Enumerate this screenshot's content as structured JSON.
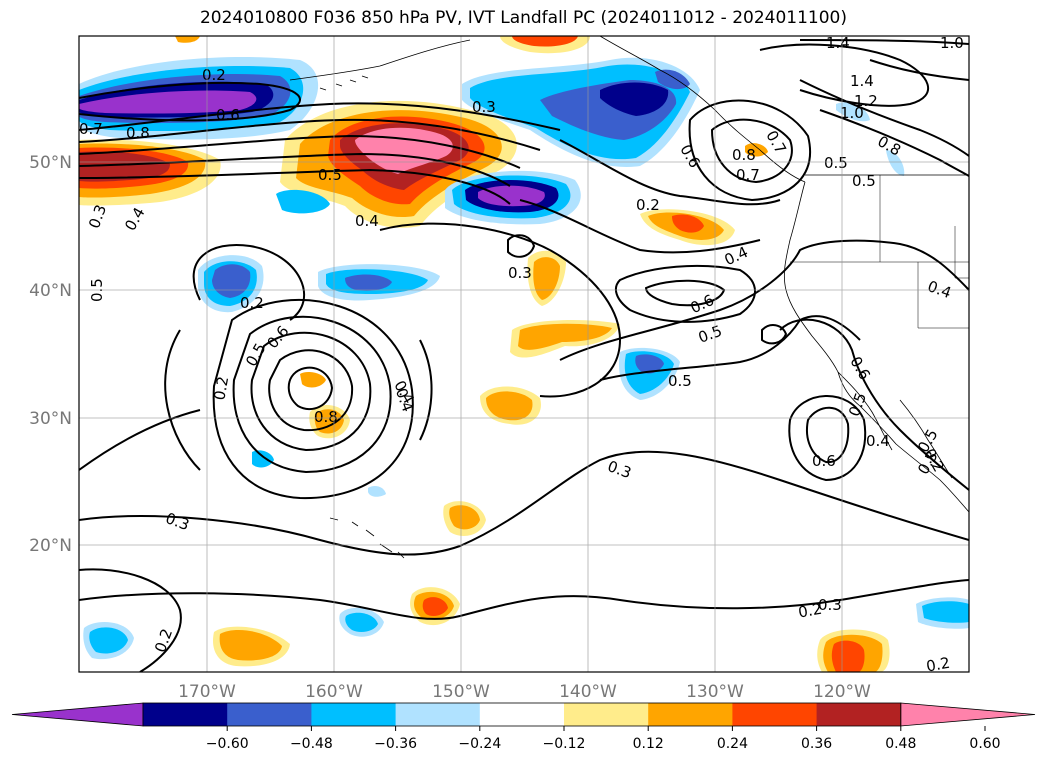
{
  "title": "2024010800 F036 850 hPa PV, IVT Landfall PC (2024011012 - 2024011100)",
  "map": {
    "lat_labels": [
      "50°N",
      "40°N",
      "30°N",
      "20°N"
    ],
    "lon_labels": [
      "170°W",
      "160°W",
      "150°W",
      "140°W",
      "130°W",
      "120°W"
    ],
    "gridlines": true,
    "coastlines": true
  },
  "colorbar": {
    "ticks": [
      "−0.60",
      "−0.48",
      "−0.36",
      "−0.24",
      "−0.12",
      "0.12",
      "0.24",
      "0.36",
      "0.48",
      "0.60"
    ],
    "colors": [
      "#9932cc",
      "#00008b",
      "#3a5fcd",
      "#00bfff",
      "#b0e2ff",
      "#ffffff",
      "#ffec8b",
      "#ffa500",
      "#ff4500",
      "#b22222",
      "#ff82ab"
    ],
    "extend": "both"
  },
  "contour_labels": [
    "0.2",
    "0.6",
    "0.7",
    "0.8",
    "0.3",
    "0.5",
    "0.4",
    "0.3",
    "0.4",
    "0.5",
    "0.4",
    "0.3",
    "0.2",
    "0.5",
    "0.6",
    "0.2",
    "0.8",
    "0.4",
    "0.3",
    "0.3",
    "0.2",
    "1.4",
    "1.4",
    "1.2",
    "1.0",
    "0.8",
    "1.0",
    "0.7",
    "0.5",
    "0.8",
    "0.7",
    "0.6",
    "0.5",
    "0.2",
    "0.4",
    "0.6",
    "0.5",
    "0.5",
    "0.3",
    "0.2",
    "0.2",
    "0.6",
    "0.4",
    "0.5",
    "0.6",
    "0.4",
    "0.5",
    "0.3",
    "0.2"
  ]
}
